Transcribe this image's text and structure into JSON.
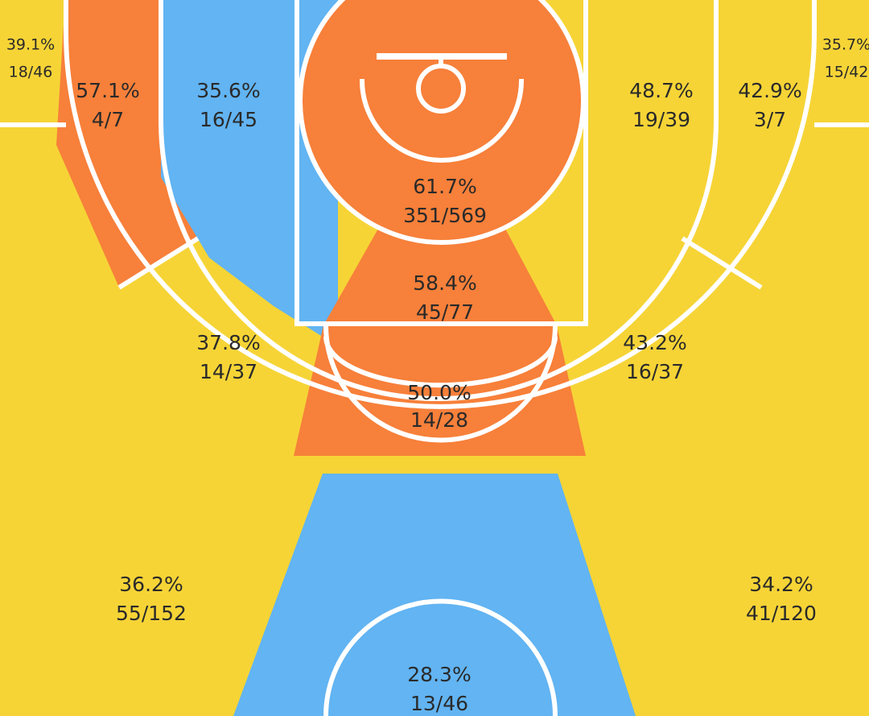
{
  "colors": {
    "hot": "#F7803A",
    "cold": "#62B4F2",
    "avg": "#F6D436",
    "line": "#FFFFFF",
    "text": "#2A2A2A"
  },
  "chart_data": {
    "type": "shot-chart",
    "zones": [
      {
        "id": "left-corner-three",
        "percentage": "39.1%",
        "makes_attempts": "18/46",
        "fg_pct": 39.1,
        "made": 18,
        "attempted": 46,
        "rating": "avg"
      },
      {
        "id": "right-corner-three",
        "percentage": "35.7%",
        "makes_attempts": "15/42",
        "fg_pct": 35.7,
        "made": 15,
        "attempted": 42,
        "rating": "avg"
      },
      {
        "id": "left-baseline-long-two",
        "percentage": "57.1%",
        "makes_attempts": "4/7",
        "fg_pct": 57.1,
        "made": 4,
        "attempted": 7,
        "rating": "hot"
      },
      {
        "id": "left-short-midrange",
        "percentage": "35.6%",
        "makes_attempts": "16/45",
        "fg_pct": 35.6,
        "made": 16,
        "attempted": 45,
        "rating": "cold"
      },
      {
        "id": "restricted-area",
        "percentage": "61.7%",
        "makes_attempts": "351/569",
        "fg_pct": 61.7,
        "made": 351,
        "attempted": 569,
        "rating": "hot"
      },
      {
        "id": "right-short-midrange",
        "percentage": "48.7%",
        "makes_attempts": "19/39",
        "fg_pct": 48.7,
        "made": 19,
        "attempted": 39,
        "rating": "avg"
      },
      {
        "id": "right-baseline-long-two",
        "percentage": "42.9%",
        "makes_attempts": "3/7",
        "fg_pct": 42.9,
        "made": 3,
        "attempted": 7,
        "rating": "avg"
      },
      {
        "id": "paint-non-ra",
        "percentage": "58.4%",
        "makes_attempts": "45/77",
        "fg_pct": 58.4,
        "made": 45,
        "attempted": 77,
        "rating": "hot"
      },
      {
        "id": "left-elbow-long-two",
        "percentage": "37.8%",
        "makes_attempts": "14/37",
        "fg_pct": 37.8,
        "made": 14,
        "attempted": 37,
        "rating": "avg"
      },
      {
        "id": "right-elbow-long-two",
        "percentage": "43.2%",
        "makes_attempts": "16/37",
        "fg_pct": 43.2,
        "made": 16,
        "attempted": 37,
        "rating": "avg"
      },
      {
        "id": "top-of-key-long-two",
        "percentage": "50.0%",
        "makes_attempts": "14/28",
        "fg_pct": 50.0,
        "made": 14,
        "attempted": 28,
        "rating": "hot"
      },
      {
        "id": "left-wing-three",
        "percentage": "36.2%",
        "makes_attempts": "55/152",
        "fg_pct": 36.2,
        "made": 55,
        "attempted": 152,
        "rating": "avg"
      },
      {
        "id": "right-wing-three",
        "percentage": "34.2%",
        "makes_attempts": "41/120",
        "fg_pct": 34.2,
        "made": 41,
        "attempted": 120,
        "rating": "avg"
      },
      {
        "id": "top-of-key-three",
        "percentage": "28.3%",
        "makes_attempts": "13/46",
        "fg_pct": 28.3,
        "made": 13,
        "attempted": 46,
        "rating": "cold"
      }
    ]
  }
}
